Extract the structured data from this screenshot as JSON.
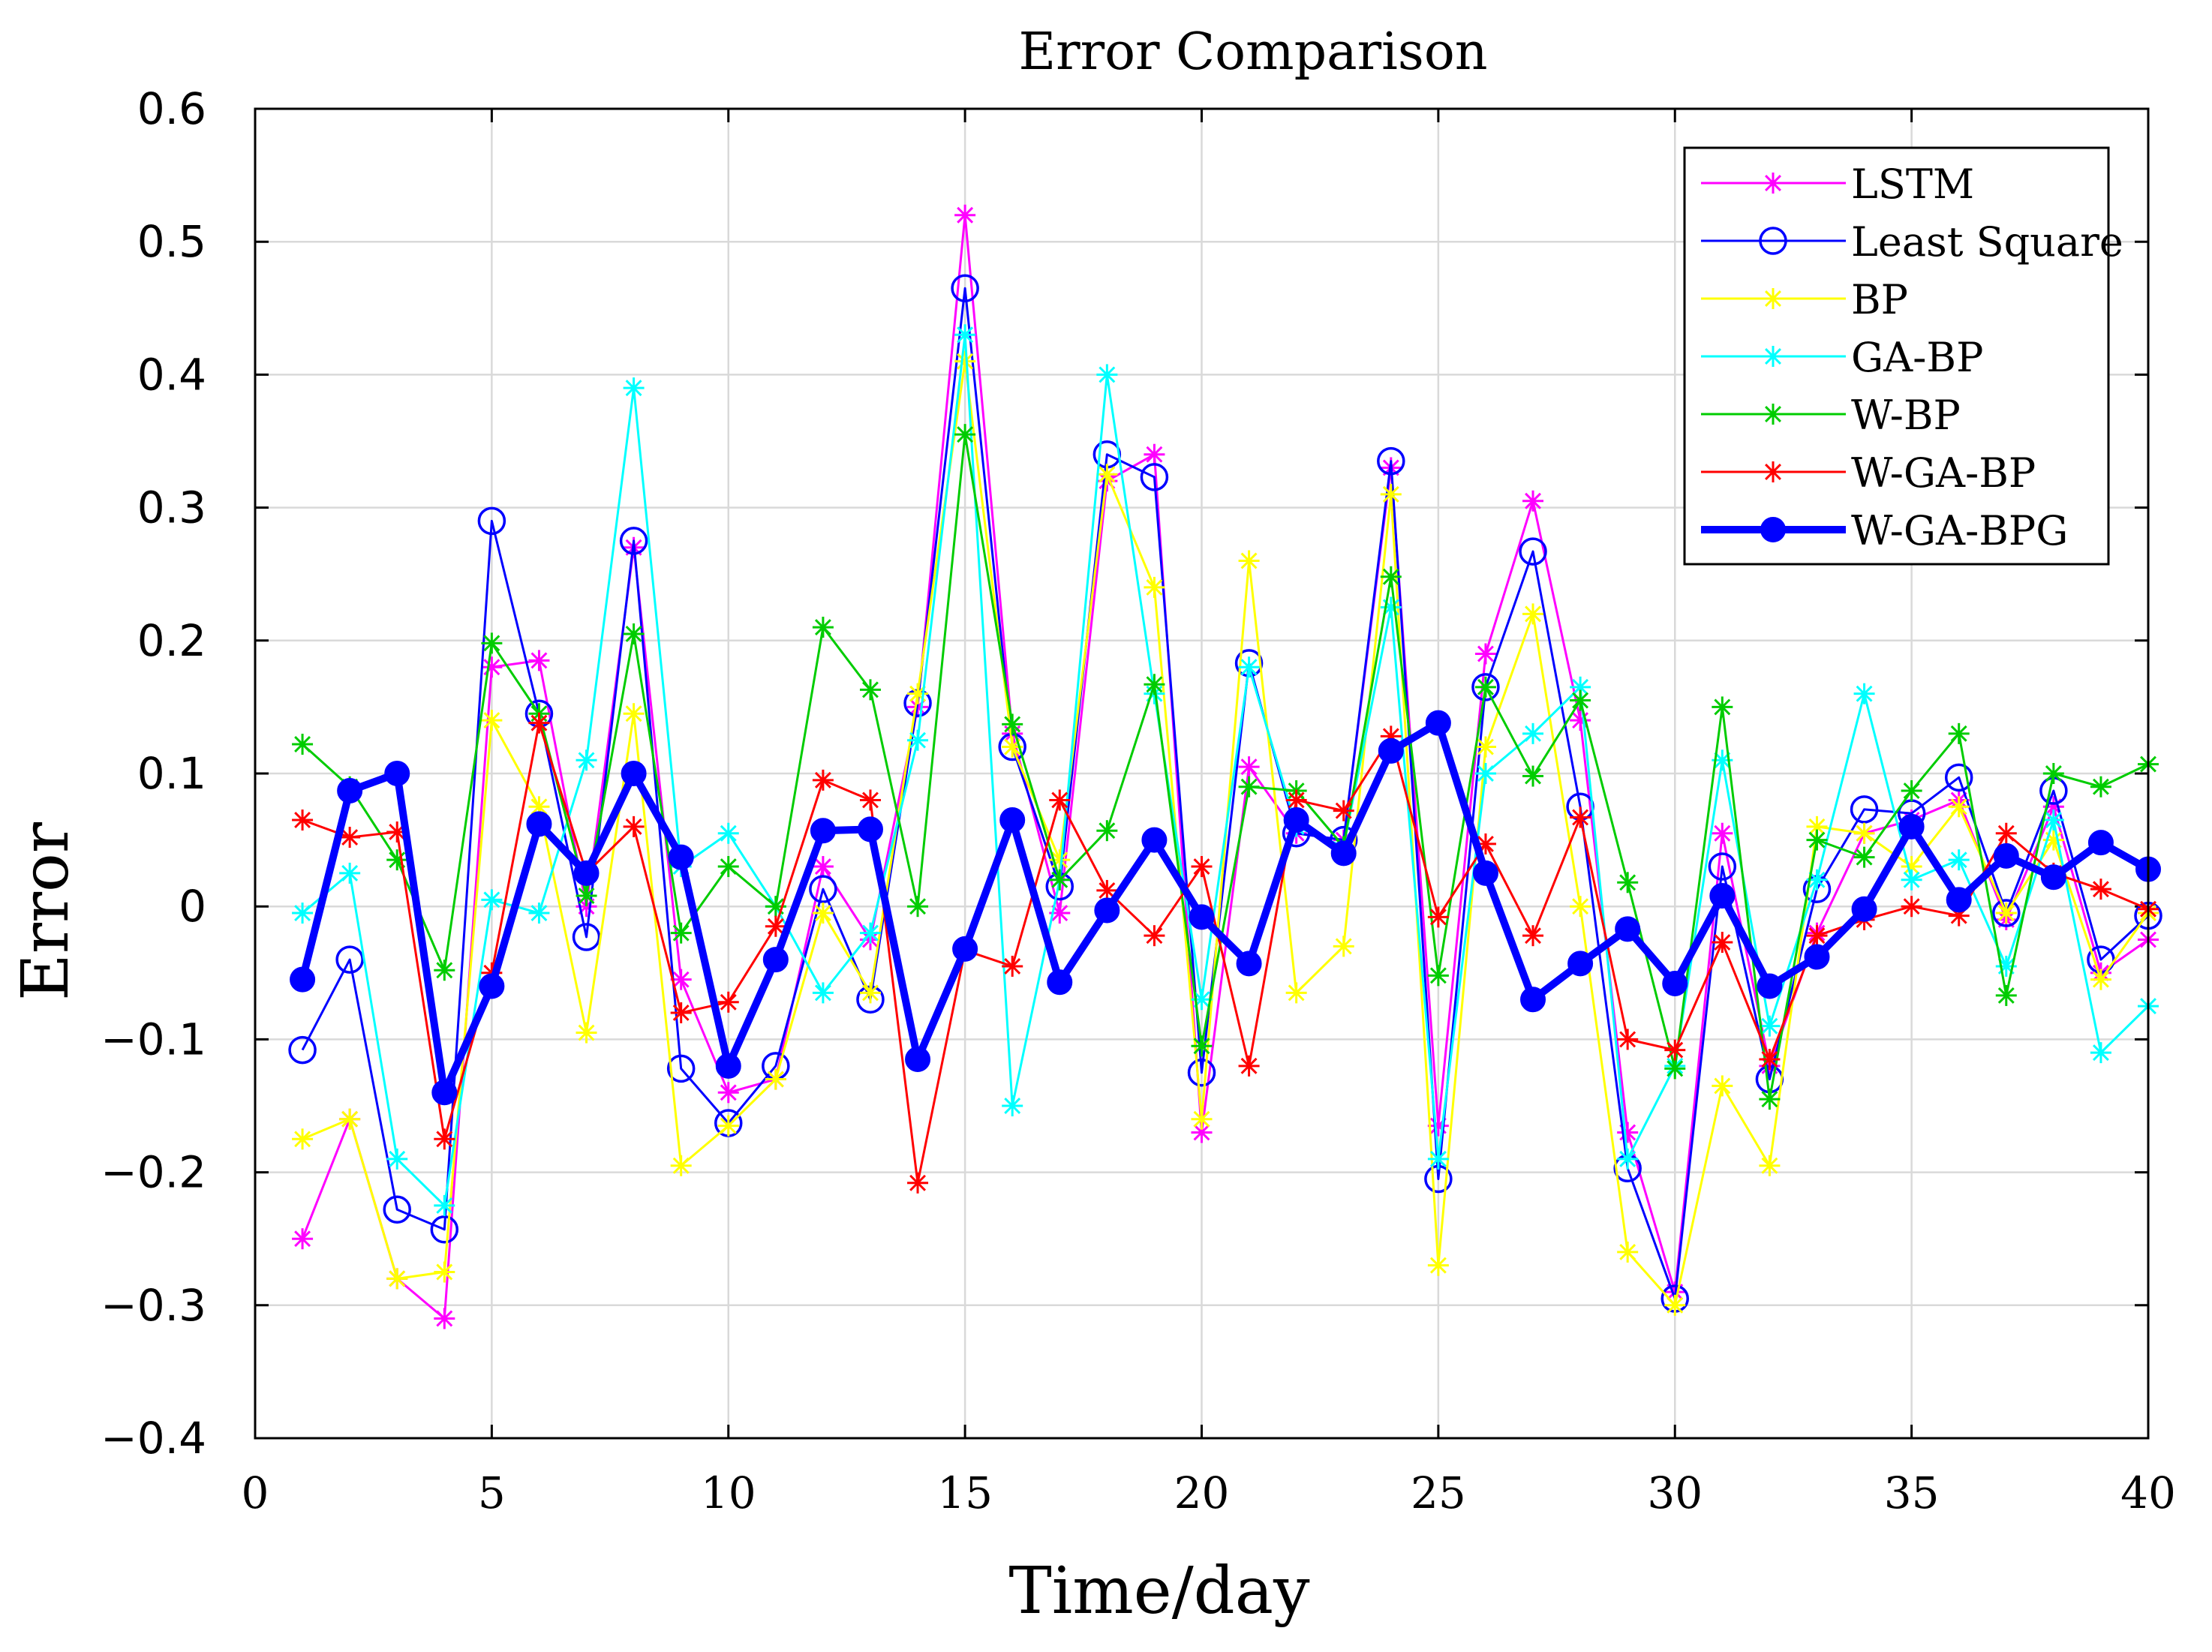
{
  "chart_data": {
    "type": "line",
    "title": "Error Comparison",
    "xlabel": "Time/day",
    "ylabel": "Error",
    "xlim": [
      0,
      40
    ],
    "ylim": [
      -0.4,
      0.6
    ],
    "x_ticks": [
      0,
      5,
      10,
      15,
      20,
      25,
      30,
      35,
      40
    ],
    "y_ticks": [
      -0.4,
      -0.3,
      -0.2,
      -0.1,
      0,
      0.1,
      0.2,
      0.3,
      0.4,
      0.5,
      0.6
    ],
    "y_tick_labels": [
      "−0.4",
      "−0.3",
      "−0.2",
      "−0.1",
      "0",
      "0.1",
      "0.2",
      "0.3",
      "0.4",
      "0.5",
      "0.6"
    ],
    "grid": true,
    "legend_position": "top-right",
    "x": [
      1,
      2,
      3,
      4,
      5,
      6,
      7,
      8,
      9,
      10,
      11,
      12,
      13,
      14,
      15,
      16,
      17,
      18,
      19,
      20,
      21,
      22,
      23,
      24,
      25,
      26,
      27,
      28,
      29,
      30,
      31,
      32,
      33,
      34,
      35,
      36,
      37,
      38,
      39,
      40
    ],
    "series": [
      {
        "name": "LSTM",
        "color": "#ff00ff",
        "marker": "star",
        "values": [
          -0.25,
          -0.16,
          -0.28,
          -0.31,
          0.18,
          0.185,
          0.0,
          0.27,
          -0.055,
          -0.14,
          -0.13,
          0.03,
          -0.025,
          0.15,
          0.52,
          0.13,
          -0.005,
          0.32,
          0.34,
          -0.17,
          0.105,
          0.055,
          0.05,
          0.33,
          -0.165,
          0.19,
          0.305,
          0.14,
          -0.17,
          -0.29,
          0.055,
          -0.12,
          -0.02,
          0.055,
          0.065,
          0.08,
          -0.01,
          0.075,
          -0.05,
          -0.025
        ]
      },
      {
        "name": "Least Square",
        "color": "#0000ff",
        "marker": "circle",
        "values": [
          -0.108,
          -0.04,
          -0.228,
          -0.243,
          0.29,
          0.145,
          -0.023,
          0.275,
          -0.122,
          -0.163,
          -0.12,
          0.013,
          -0.07,
          0.153,
          0.465,
          0.12,
          0.015,
          0.34,
          0.323,
          -0.125,
          0.183,
          0.055,
          0.05,
          0.335,
          -0.205,
          0.165,
          0.267,
          0.075,
          -0.197,
          -0.295,
          0.03,
          -0.13,
          0.013,
          0.073,
          0.07,
          0.097,
          -0.005,
          0.087,
          -0.04,
          -0.007
        ]
      },
      {
        "name": "BP",
        "color": "#ffff00",
        "marker": "star",
        "values": [
          -0.175,
          -0.16,
          -0.28,
          -0.275,
          0.14,
          0.075,
          -0.095,
          0.145,
          -0.195,
          -0.165,
          -0.13,
          -0.005,
          -0.065,
          0.16,
          0.41,
          0.12,
          0.035,
          0.325,
          0.24,
          -0.16,
          0.26,
          -0.065,
          -0.03,
          0.31,
          -0.27,
          0.12,
          0.22,
          0.0,
          -0.26,
          -0.3,
          -0.135,
          -0.195,
          0.06,
          0.055,
          0.03,
          0.075,
          -0.005,
          0.05,
          -0.055,
          -0.005
        ]
      },
      {
        "name": "GA-BP",
        "color": "#00ffff",
        "marker": "star",
        "values": [
          -0.005,
          0.025,
          -0.19,
          -0.225,
          0.005,
          -0.005,
          0.11,
          0.39,
          0.03,
          0.055,
          0.0,
          -0.065,
          -0.02,
          0.125,
          0.43,
          -0.15,
          0.02,
          0.4,
          0.16,
          -0.07,
          0.18,
          0.06,
          0.045,
          0.225,
          -0.19,
          0.1,
          0.13,
          0.165,
          -0.19,
          -0.12,
          0.11,
          -0.09,
          0.02,
          0.16,
          0.02,
          0.035,
          -0.045,
          0.065,
          -0.11,
          -0.075
        ]
      },
      {
        "name": "W-BP",
        "color": "#00cc00",
        "marker": "star",
        "values": [
          0.122,
          0.09,
          0.035,
          -0.048,
          0.198,
          0.145,
          0.008,
          0.205,
          -0.02,
          0.03,
          0.0,
          0.21,
          0.163,
          0.0,
          0.355,
          0.137,
          0.02,
          0.057,
          0.167,
          -0.105,
          0.09,
          0.087,
          0.045,
          0.248,
          -0.052,
          0.165,
          0.098,
          0.155,
          0.018,
          -0.122,
          0.15,
          -0.145,
          0.05,
          0.037,
          0.087,
          0.13,
          -0.067,
          0.1,
          0.09,
          0.107
        ]
      },
      {
        "name": "W-GA-BP",
        "color": "#ff0000",
        "marker": "star",
        "values": [
          0.065,
          0.052,
          0.056,
          -0.175,
          -0.05,
          0.138,
          0.025,
          0.06,
          -0.08,
          -0.072,
          -0.015,
          0.095,
          0.08,
          -0.208,
          -0.033,
          -0.045,
          0.08,
          0.012,
          -0.022,
          0.03,
          -0.12,
          0.08,
          0.072,
          0.128,
          -0.008,
          0.047,
          -0.022,
          0.067,
          -0.1,
          -0.108,
          -0.027,
          -0.115,
          -0.022,
          -0.01,
          0.0,
          -0.007,
          0.055,
          0.025,
          0.013,
          -0.002
        ]
      },
      {
        "name": "W-GA-BPG",
        "color": "#0000ff",
        "marker": "dot",
        "values": [
          -0.055,
          0.087,
          0.1,
          -0.14,
          -0.06,
          0.062,
          0.025,
          0.1,
          0.037,
          -0.12,
          -0.04,
          0.057,
          0.058,
          -0.115,
          -0.032,
          0.065,
          -0.057,
          -0.003,
          0.05,
          -0.008,
          -0.043,
          0.065,
          0.04,
          0.117,
          0.138,
          0.025,
          -0.07,
          -0.043,
          -0.017,
          -0.058,
          0.008,
          -0.06,
          -0.038,
          -0.002,
          0.06,
          0.005,
          0.038,
          0.022,
          0.048,
          0.028
        ]
      }
    ]
  }
}
